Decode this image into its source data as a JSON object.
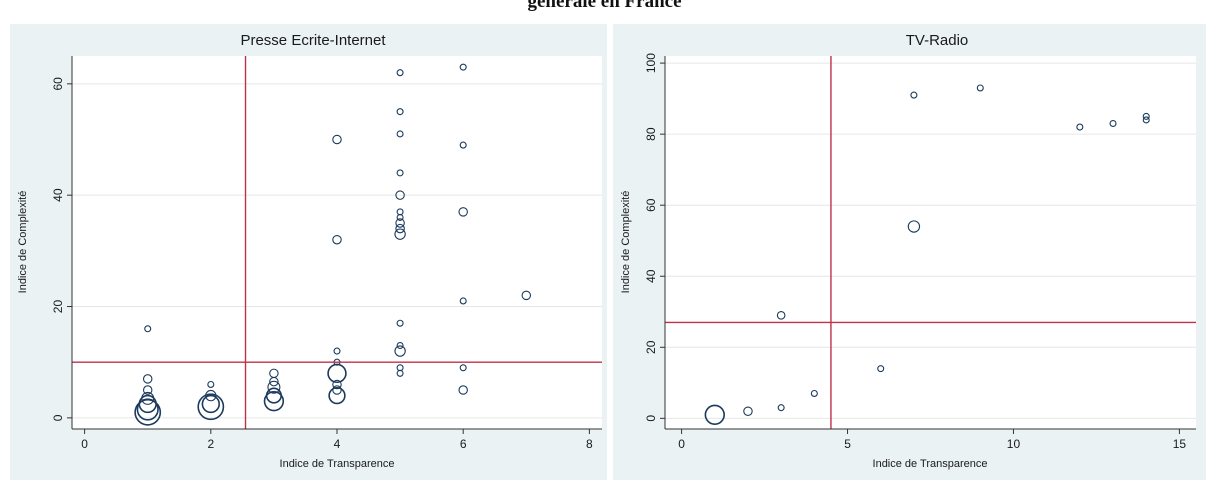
{
  "heading": "générale en France",
  "colors": {
    "panel_bg": "#eaf2f3",
    "point": "#1b3a5c",
    "threshold": "#c0304a",
    "grid": "#e6e6e6"
  },
  "chart_data": [
    {
      "type": "scatter",
      "title": "Presse Ecrite-Internet",
      "xlabel": "Indice de Transparence",
      "ylabel": "Indice de Complexité",
      "xlim": [
        -0.2,
        8.2
      ],
      "ylim": [
        -2,
        65
      ],
      "xticks": [
        0,
        2,
        4,
        6,
        8
      ],
      "yticks": [
        0,
        20,
        40,
        60
      ],
      "grid": true,
      "threshold_x": 2.55,
      "threshold_y": 10,
      "points": [
        {
          "x": 1,
          "y": 1,
          "w": 9
        },
        {
          "x": 1,
          "y": 1.5,
          "w": 6
        },
        {
          "x": 1,
          "y": 2.5,
          "w": 4
        },
        {
          "x": 1,
          "y": 3.5,
          "w": 2
        },
        {
          "x": 1,
          "y": 5,
          "w": 1
        },
        {
          "x": 1,
          "y": 7,
          "w": 1
        },
        {
          "x": 1,
          "y": 16,
          "w": 0.5
        },
        {
          "x": 2,
          "y": 2,
          "w": 9
        },
        {
          "x": 2,
          "y": 2.5,
          "w": 4
        },
        {
          "x": 2,
          "y": 4,
          "w": 1.5
        },
        {
          "x": 2,
          "y": 6,
          "w": 0.5
        },
        {
          "x": 3,
          "y": 3,
          "w": 5
        },
        {
          "x": 3,
          "y": 4,
          "w": 3
        },
        {
          "x": 3,
          "y": 5.5,
          "w": 2
        },
        {
          "x": 3,
          "y": 6.5,
          "w": 1
        },
        {
          "x": 3,
          "y": 8,
          "w": 1
        },
        {
          "x": 4,
          "y": 4,
          "w": 3.5
        },
        {
          "x": 4,
          "y": 5,
          "w": 1
        },
        {
          "x": 4,
          "y": 6,
          "w": 1
        },
        {
          "x": 4,
          "y": 8,
          "w": 4.5
        },
        {
          "x": 4,
          "y": 10,
          "w": 0.5
        },
        {
          "x": 4,
          "y": 12,
          "w": 0.5
        },
        {
          "x": 4,
          "y": 32,
          "w": 1
        },
        {
          "x": 4,
          "y": 50,
          "w": 1
        },
        {
          "x": 5,
          "y": 8,
          "w": 0.5
        },
        {
          "x": 5,
          "y": 9,
          "w": 0.5
        },
        {
          "x": 5,
          "y": 12,
          "w": 1.5
        },
        {
          "x": 5,
          "y": 13,
          "w": 0.5
        },
        {
          "x": 5,
          "y": 17,
          "w": 0.5
        },
        {
          "x": 5,
          "y": 33,
          "w": 1.5
        },
        {
          "x": 5,
          "y": 34,
          "w": 1
        },
        {
          "x": 5,
          "y": 35,
          "w": 1
        },
        {
          "x": 5,
          "y": 36,
          "w": 0.5
        },
        {
          "x": 5,
          "y": 37,
          "w": 0.5
        },
        {
          "x": 5,
          "y": 40,
          "w": 1
        },
        {
          "x": 5,
          "y": 44,
          "w": 0.5
        },
        {
          "x": 5,
          "y": 51,
          "w": 0.5
        },
        {
          "x": 5,
          "y": 55,
          "w": 0.5
        },
        {
          "x": 5,
          "y": 62,
          "w": 0.5
        },
        {
          "x": 6,
          "y": 5,
          "w": 1
        },
        {
          "x": 6,
          "y": 9,
          "w": 0.5
        },
        {
          "x": 6,
          "y": 21,
          "w": 0.5
        },
        {
          "x": 6,
          "y": 37,
          "w": 1
        },
        {
          "x": 6,
          "y": 49,
          "w": 0.5
        },
        {
          "x": 6,
          "y": 63,
          "w": 0.5
        },
        {
          "x": 7,
          "y": 22,
          "w": 1
        }
      ]
    },
    {
      "type": "scatter",
      "title": "TV-Radio",
      "xlabel": "Indice de Transparence",
      "ylabel": "Indice de Complexité",
      "xlim": [
        -0.5,
        15.5
      ],
      "ylim": [
        -3,
        102
      ],
      "xticks": [
        0,
        5,
        10,
        15
      ],
      "yticks": [
        0,
        20,
        40,
        60,
        80,
        100
      ],
      "grid": true,
      "threshold_x": 4.5,
      "threshold_y": 27,
      "points": [
        {
          "x": 1,
          "y": 1,
          "w": 5
        },
        {
          "x": 2,
          "y": 2,
          "w": 1
        },
        {
          "x": 3,
          "y": 3,
          "w": 0.5
        },
        {
          "x": 3,
          "y": 29,
          "w": 0.8
        },
        {
          "x": 4,
          "y": 7,
          "w": 0.5
        },
        {
          "x": 6,
          "y": 14,
          "w": 0.5
        },
        {
          "x": 7,
          "y": 54,
          "w": 1.8
        },
        {
          "x": 7,
          "y": 91,
          "w": 0.5
        },
        {
          "x": 9,
          "y": 93,
          "w": 0.5
        },
        {
          "x": 12,
          "y": 82,
          "w": 0.5
        },
        {
          "x": 13,
          "y": 83,
          "w": 0.5
        },
        {
          "x": 14,
          "y": 84,
          "w": 0.5
        },
        {
          "x": 14,
          "y": 85,
          "w": 0.5
        }
      ]
    }
  ]
}
